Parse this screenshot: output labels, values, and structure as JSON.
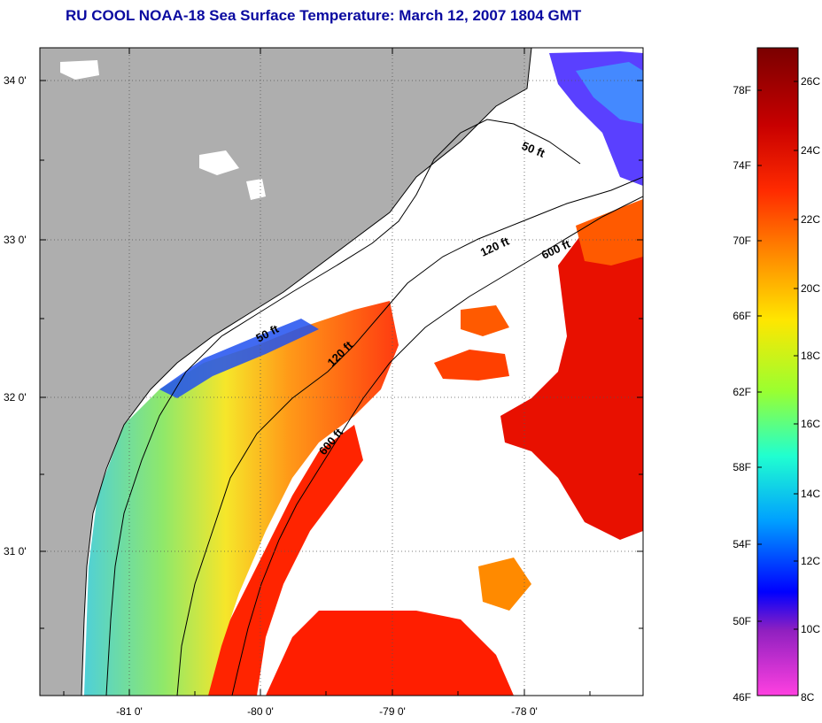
{
  "title": "RU COOL  NOAA-18  Sea Surface Temperature:  March 12, 2007 1804 GMT",
  "map": {
    "lat_labels": [
      "34 0'",
      "33 0'",
      "32 0'",
      "31 0'"
    ],
    "lon_labels": [
      "-81 0'",
      "-80 0'",
      "-79 0'",
      "-78 0'"
    ],
    "contour_labels": [
      "50 ft",
      "120 ft",
      "600 ft",
      "50 ft",
      "120 ft",
      "600 ft"
    ]
  },
  "colorbar": {
    "fahrenheit_labels": [
      "78F",
      "74F",
      "70F",
      "66F",
      "62F",
      "58F",
      "54F",
      "50F",
      "46F"
    ],
    "celsius_labels": [
      "26C",
      "24C",
      "22C",
      "20C",
      "18C",
      "16C",
      "14C",
      "12C",
      "10C",
      "8C"
    ],
    "colors": [
      "#7a0000",
      "#c80000",
      "#ff2a00",
      "#ff8a00",
      "#ffe600",
      "#9aff30",
      "#20ffd0",
      "#00a0ff",
      "#0000ff",
      "#9020c0",
      "#ff40e0"
    ]
  },
  "colors": {
    "land": "#aeaeae",
    "no_data": "#ffffff",
    "title": "#0a0aa0"
  }
}
